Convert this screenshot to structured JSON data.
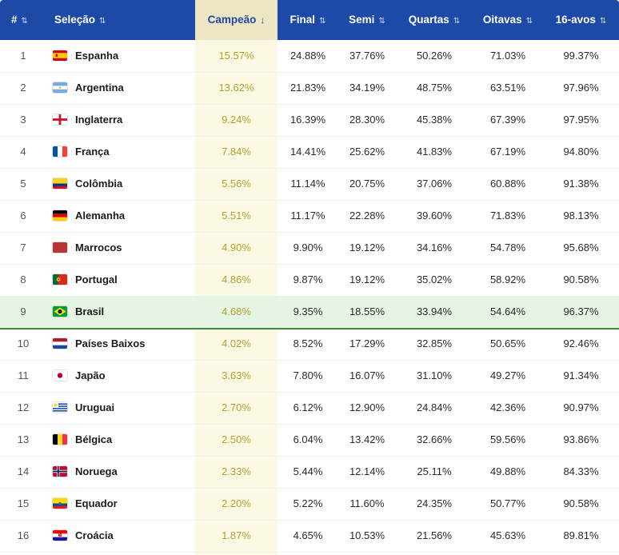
{
  "columns": {
    "rank": "#",
    "team": "Seleção",
    "champion": "Campeão",
    "final": "Final",
    "semi": "Semi",
    "quarters": "Quartas",
    "round16": "Oitavas",
    "round32": "16-avos"
  },
  "sort_icon": "⇅",
  "sort_active_icon": "↓",
  "colors": {
    "header_bg": "#1c4aa6",
    "champion_text": "#b0a32c",
    "highlight_row": "#e6f4e3"
  },
  "rows": [
    {
      "rank": "1",
      "team": "Espanha",
      "flag": "spain-flag-icon",
      "champion": "15.57%",
      "final": "24.88%",
      "semi": "37.76%",
      "quarters": "50.26%",
      "round16": "71.03%",
      "round32": "99.37%"
    },
    {
      "rank": "2",
      "team": "Argentina",
      "flag": "argentina-flag-icon",
      "champion": "13.62%",
      "final": "21.83%",
      "semi": "34.19%",
      "quarters": "48.75%",
      "round16": "63.51%",
      "round32": "97.96%"
    },
    {
      "rank": "3",
      "team": "Inglaterra",
      "flag": "england-flag-icon",
      "champion": "9.24%",
      "final": "16.39%",
      "semi": "28.30%",
      "quarters": "45.38%",
      "round16": "67.39%",
      "round32": "97.95%"
    },
    {
      "rank": "4",
      "team": "França",
      "flag": "france-flag-icon",
      "champion": "7.84%",
      "final": "14.41%",
      "semi": "25.62%",
      "quarters": "41.83%",
      "round16": "67.19%",
      "round32": "94.80%"
    },
    {
      "rank": "5",
      "team": "Colômbia",
      "flag": "colombia-flag-icon",
      "champion": "5.56%",
      "final": "11.14%",
      "semi": "20.75%",
      "quarters": "37.06%",
      "round16": "60.88%",
      "round32": "91.38%"
    },
    {
      "rank": "6",
      "team": "Alemanha",
      "flag": "germany-flag-icon",
      "champion": "5.51%",
      "final": "11.17%",
      "semi": "22.28%",
      "quarters": "39.60%",
      "round16": "71.83%",
      "round32": "98.13%"
    },
    {
      "rank": "7",
      "team": "Marrocos",
      "flag": "morocco-flag-icon",
      "champion": "4.90%",
      "final": "9.90%",
      "semi": "19.12%",
      "quarters": "34.16%",
      "round16": "54.78%",
      "round32": "95.68%"
    },
    {
      "rank": "8",
      "team": "Portugal",
      "flag": "portugal-flag-icon",
      "champion": "4.86%",
      "final": "9.87%",
      "semi": "19.12%",
      "quarters": "35.02%",
      "round16": "58.92%",
      "round32": "90.58%"
    },
    {
      "rank": "9",
      "team": "Brasil",
      "flag": "brazil-flag-icon",
      "champion": "4.68%",
      "final": "9.35%",
      "semi": "18.55%",
      "quarters": "33.94%",
      "round16": "54.64%",
      "round32": "96.37%",
      "highlight": true
    },
    {
      "rank": "10",
      "team": "Países Baixos",
      "flag": "netherlands-flag-icon",
      "champion": "4.02%",
      "final": "8.52%",
      "semi": "17.29%",
      "quarters": "32.85%",
      "round16": "50.65%",
      "round32": "92.46%"
    },
    {
      "rank": "11",
      "team": "Japão",
      "flag": "japan-flag-icon",
      "champion": "3.63%",
      "final": "7.80%",
      "semi": "16.07%",
      "quarters": "31.10%",
      "round16": "49.27%",
      "round32": "91.34%"
    },
    {
      "rank": "12",
      "team": "Uruguai",
      "flag": "uruguay-flag-icon",
      "champion": "2.70%",
      "final": "6.12%",
      "semi": "12.90%",
      "quarters": "24.84%",
      "round16": "42.36%",
      "round32": "90.97%"
    },
    {
      "rank": "13",
      "team": "Bélgica",
      "flag": "belgium-flag-icon",
      "champion": "2.50%",
      "final": "6.04%",
      "semi": "13.42%",
      "quarters": "32.66%",
      "round16": "59.56%",
      "round32": "93.86%"
    },
    {
      "rank": "14",
      "team": "Noruega",
      "flag": "norway-flag-icon",
      "champion": "2.33%",
      "final": "5.44%",
      "semi": "12.14%",
      "quarters": "25.11%",
      "round16": "49.88%",
      "round32": "84.33%"
    },
    {
      "rank": "15",
      "team": "Equador",
      "flag": "ecuador-flag-icon",
      "champion": "2.20%",
      "final": "5.22%",
      "semi": "11.60%",
      "quarters": "24.35%",
      "round16": "50.77%",
      "round32": "90.58%"
    },
    {
      "rank": "16",
      "team": "Croácia",
      "flag": "croatia-flag-icon",
      "champion": "1.87%",
      "final": "4.65%",
      "semi": "10.53%",
      "quarters": "21.56%",
      "round16": "45.63%",
      "round32": "89.81%"
    }
  ]
}
